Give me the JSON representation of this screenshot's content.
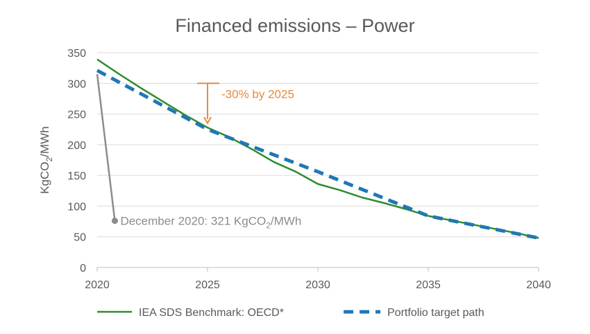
{
  "chart_data": {
    "type": "line",
    "title": "Financed emissions – Power",
    "ylabel": "KgCO₂/MWh",
    "xlabel": "",
    "xlim": [
      2020,
      2040
    ],
    "ylim": [
      0,
      350
    ],
    "x_ticks": [
      "2020",
      "2025",
      "2030",
      "2035",
      "2040"
    ],
    "y_ticks": [
      "0",
      "50",
      "100",
      "150",
      "200",
      "250",
      "300",
      "350"
    ],
    "grid": "horizontal",
    "legend_position": "bottom",
    "series": [
      {
        "name": "IEA SDS Benchmark: OECD*",
        "color": "#2e8b2e",
        "style": "solid",
        "x": [
          2020,
          2021,
          2022,
          2023,
          2024,
          2025,
          2026,
          2027,
          2028,
          2029,
          2030,
          2031,
          2032,
          2033,
          2034,
          2035,
          2036,
          2037,
          2038,
          2039,
          2040
        ],
        "values": [
          339,
          315,
          292,
          270,
          248,
          228,
          212,
          193,
          172,
          156,
          136,
          126,
          114,
          105,
          95,
          84,
          77,
          70,
          63,
          56,
          48
        ]
      },
      {
        "name": "Portfolio target path",
        "color": "#1f78b4",
        "style": "dashed",
        "x": [
          2020,
          2025,
          2030,
          2035,
          2040
        ],
        "values": [
          321,
          225,
          156,
          84,
          48
        ]
      }
    ],
    "annotations": [
      {
        "text": "-30% by 2025",
        "color": "#e8893a",
        "x": 2025,
        "from": 300,
        "to": 235
      },
      {
        "text_prefix": "December 2020: 321 KgCO",
        "text_sub": "2",
        "text_suffix": "/MWh",
        "color": "#8c8c8c",
        "x_start": 2020,
        "y_start": 315,
        "x_end": 2020.8,
        "y_end": 76
      }
    ]
  }
}
